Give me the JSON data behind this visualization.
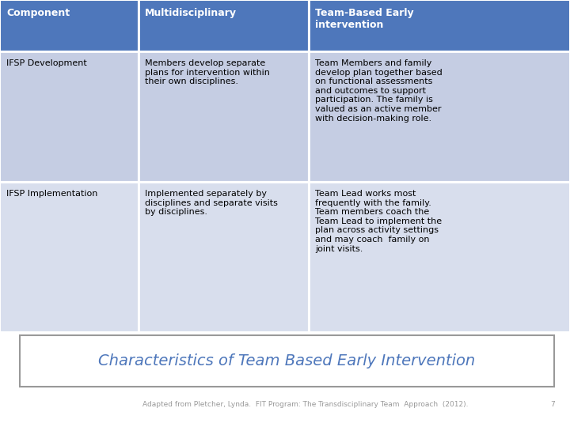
{
  "header_bg": "#4E77BB",
  "header_text_color": "#FFFFFF",
  "row1_bg": "#C5CDE3",
  "row2_bg": "#D8DEED",
  "page_bg": "#FFFFFF",
  "border_color": "#FFFFFF",
  "title_color": "#4E77BB",
  "footer_text_color": "#999999",
  "headers": [
    "Component",
    "Multidisciplinary",
    "Team-Based Early\nintervention"
  ],
  "row1_col1": "IFSP Development",
  "row1_col2": "Members develop separate\nplans for intervention within\ntheir own disciplines.",
  "row1_col3": "Team Members and family\ndevelop plan together based\non functional assessments\nand outcomes to support\nparticipation. The family is\nvalued as an active member\nwith decision-making role.",
  "row2_col1": "IFSP Implementation",
  "row2_col2": "Implemented separately by\ndisciplines and separate visits\nby disciplines.",
  "row2_col3": "Team Lead works most\nfrequently with the family.\nTeam members coach the\nTeam Lead to implement the\nplan across activity settings\nand may coach  family on\njoint visits.",
  "footer_title": "Characteristics of Team Based Early Intervention",
  "footer_citation": "Adapted from Pletcher, Lynda.  FIT Program: The Transdisciplinary Team  Approach  (2012).",
  "page_number": "7",
  "header_fontsize": 9,
  "cell_fontsize": 8,
  "footer_title_fontsize": 14,
  "citation_fontsize": 6.5
}
